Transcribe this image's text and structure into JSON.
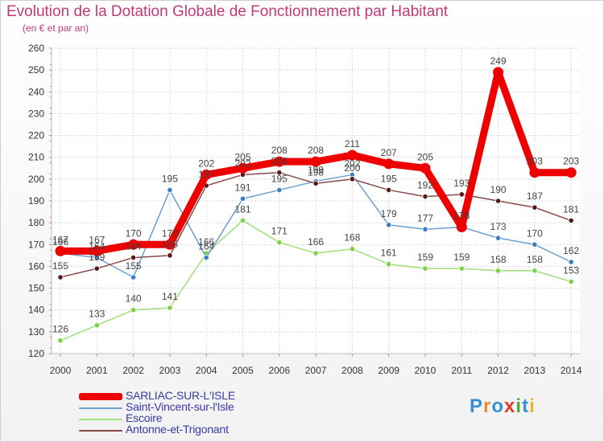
{
  "title": "Evolution de la Dotation Globale de Fonctionnement par Habitant",
  "subtitle": "(en € et par an)",
  "logo": {
    "text": "Proxiti",
    "letters": [
      "P",
      "r",
      "o",
      "x",
      "i",
      "t",
      "i"
    ],
    "colors": [
      "#3a8ed8",
      "#e88a2a",
      "#3a8ed8",
      "#e03a2a",
      "#4aaa3a",
      "#3a8ed8",
      "#e8b82a"
    ]
  },
  "chart_data": {
    "type": "line",
    "title": "Evolution de la Dotation Globale de Fonctionnement par Habitant",
    "subtitle": "(en € et par an)",
    "xlabel": "",
    "ylabel": "",
    "ylim": [
      120,
      260
    ],
    "yticks": [
      "120",
      "130",
      "140",
      "150",
      "160",
      "170",
      "180",
      "190",
      "200",
      "210",
      "220",
      "230",
      "240",
      "250",
      "260"
    ],
    "grid": true,
    "categories": [
      "2000",
      "2001",
      "2002",
      "2003",
      "2004",
      "2005",
      "2006",
      "2007",
      "2008",
      "2009",
      "2010",
      "2011",
      "2012",
      "2013",
      "2014"
    ],
    "legend_position": "bottom-left",
    "series": [
      {
        "name": "SARLIAC-SUR-L'ISLE",
        "color": "#ee0000",
        "marker_color": "#ee0000",
        "values": [
          167,
          167,
          170,
          170,
          202,
          205,
          208,
          208,
          211,
          207,
          205,
          178,
          249,
          203,
          203
        ],
        "labels": [
          "167",
          "167",
          "170",
          "170",
          "202",
          "205",
          "208",
          "208",
          "211",
          "207",
          "205",
          "178",
          "249",
          "203",
          "203"
        ]
      },
      {
        "name": "Saint-Vincent-sur-l'Isle",
        "color": "#6a9fd0",
        "marker_color": "#3a7ec6",
        "values": [
          166,
          164,
          155,
          195,
          164,
          191,
          195,
          199,
          202,
          179,
          177,
          178,
          173,
          170,
          162
        ],
        "labels": [
          "166",
          "164",
          "155",
          "195",
          "164",
          "191",
          "195",
          "199",
          "202",
          "179",
          "177",
          "178",
          "173",
          "170",
          "162"
        ]
      },
      {
        "name": "Escoire",
        "color": "#9ee07a",
        "marker_color": "#7ed04a",
        "values": [
          126,
          133,
          140,
          141,
          166,
          181,
          171,
          166,
          168,
          161,
          159,
          159,
          158,
          158,
          153
        ],
        "labels": [
          "126",
          "133",
          "140",
          "141",
          "166",
          "181",
          "171",
          "166",
          "168",
          "161",
          "159",
          "159",
          "158",
          "158",
          "153"
        ]
      },
      {
        "name": "Antonne-et-Trigonant",
        "color": "#8a4a4a",
        "marker_color": "#5a1a1a",
        "values": [
          155,
          159,
          164,
          165,
          197,
          202,
          203,
          198,
          200,
          195,
          192,
          193,
          190,
          187,
          181
        ],
        "labels": [
          "155",
          "159",
          "164",
          "165",
          "197",
          "202",
          "203",
          "198",
          "200",
          "195",
          "192",
          "193",
          "190",
          "187",
          "181"
        ]
      }
    ]
  }
}
